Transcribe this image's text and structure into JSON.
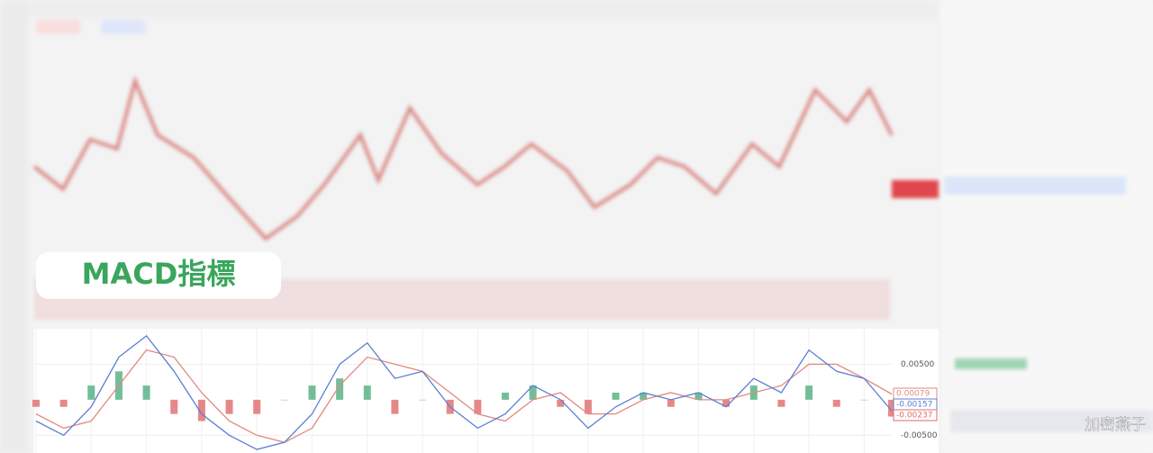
{
  "badge": "MACD指標",
  "watermark": "加密燕子",
  "chart_data": {
    "type": "macd",
    "categories": [
      "",
      "",
      "",
      "",
      "",
      "",
      "",
      "",
      "",
      "",
      "",
      "",
      "",
      "",
      "",
      "",
      "",
      "",
      "",
      "",
      "",
      "",
      "",
      "",
      "",
      "",
      "",
      "",
      "",
      "",
      "",
      ""
    ],
    "ylim": [
      -0.0075,
      0.01
    ],
    "yticks": [
      {
        "value": 0.005,
        "label": "0.00500"
      },
      {
        "value": -0.005,
        "label": "-0.00500"
      }
    ],
    "grid": true,
    "series": [
      {
        "color": "#e08a80",
        "values": [
          -0.002,
          -0.004,
          -0.003,
          0.002,
          0.007,
          0.006,
          0.001,
          -0.003,
          -0.005,
          -0.006,
          -0.004,
          0.002,
          0.006,
          0.005,
          0.004,
          0.001,
          -0.002,
          -0.003,
          0.0,
          0.001,
          -0.002,
          -0.002,
          0.0,
          0.001,
          0.0,
          0.0,
          0.001,
          0.002,
          0.005,
          0.005,
          0.003,
          0.00079
        ]
      },
      {
        "color": "#5b7fd1",
        "values": [
          -0.003,
          -0.005,
          -0.001,
          0.006,
          0.009,
          0.004,
          -0.002,
          -0.005,
          -0.007,
          -0.006,
          -0.002,
          0.005,
          0.008,
          0.003,
          0.004,
          -0.001,
          -0.004,
          -0.002,
          0.002,
          0.0,
          -0.004,
          -0.001,
          0.001,
          0.0,
          0.001,
          -0.001,
          0.003,
          0.001,
          0.007,
          0.004,
          0.003,
          -0.00157
        ]
      },
      {
        "color": "#e06a6a",
        "values": [
          -0.001,
          -0.001,
          0.002,
          0.004,
          0.002,
          -0.002,
          -0.003,
          -0.002,
          -0.002,
          0.0,
          0.002,
          0.003,
          0.002,
          -0.002,
          0.0,
          -0.002,
          -0.002,
          0.001,
          0.002,
          -0.001,
          -0.002,
          0.001,
          0.001,
          -0.001,
          0.001,
          -0.001,
          0.002,
          -0.001,
          0.002,
          -0.001,
          0.0,
          -0.00237
        ]
      }
    ]
  }
}
